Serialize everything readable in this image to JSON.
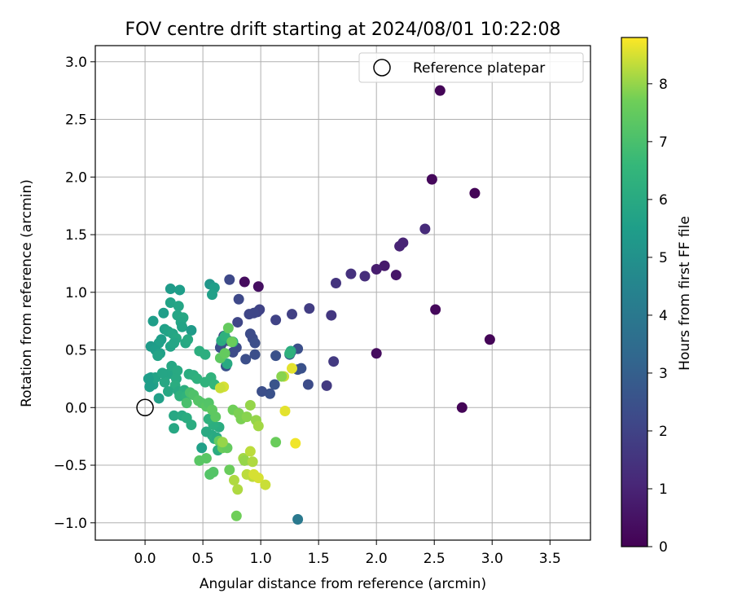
{
  "chart_data": {
    "type": "scatter",
    "title": "FOV centre drift starting at 2024/08/01 10:22:08",
    "xlabel": "Angular distance from reference (arcmin)",
    "ylabel": "Rotation from reference (arcmin)",
    "xlim": [
      -0.43,
      3.85
    ],
    "ylim": [
      -1.15,
      3.14
    ],
    "x_ticks": [
      "0.0",
      "0.5",
      "1.0",
      "1.5",
      "2.0",
      "2.5",
      "3.0",
      "3.5"
    ],
    "x_tick_values": [
      0.0,
      0.5,
      1.0,
      1.5,
      2.0,
      2.5,
      3.0,
      3.5
    ],
    "y_ticks": [
      "−1.0",
      "−0.5",
      "0.0",
      "0.5",
      "1.0",
      "1.5",
      "2.0",
      "2.5",
      "3.0"
    ],
    "y_tick_values": [
      -1.0,
      -0.5,
      0.0,
      0.5,
      1.0,
      1.5,
      2.0,
      2.5,
      3.0
    ],
    "grid": true,
    "legend": {
      "placement": "top-right",
      "entries": [
        {
          "label": "Reference platepar",
          "marker": "open-circle"
        }
      ]
    },
    "reference_point": {
      "x": 0.0,
      "y": 0.0
    },
    "colorbar": {
      "label": "Hours from first FF file",
      "colormap": "viridis",
      "range": [
        0,
        8.8
      ],
      "ticks": [
        "0",
        "1",
        "2",
        "3",
        "4",
        "5",
        "6",
        "7",
        "8"
      ],
      "tick_values": [
        0,
        1,
        2,
        3,
        4,
        5,
        6,
        7,
        8
      ]
    },
    "points": [
      [
        2.55,
        2.75,
        0.1
      ],
      [
        2.48,
        1.98,
        0.2
      ],
      [
        2.85,
        1.86,
        0.1
      ],
      [
        2.51,
        0.85,
        0.2
      ],
      [
        2.98,
        0.59,
        0.1
      ],
      [
        2.74,
        0.0,
        0.1
      ],
      [
        2.0,
        0.47,
        0.3
      ],
      [
        0.86,
        1.09,
        0.3
      ],
      [
        0.98,
        1.05,
        0.4
      ],
      [
        2.17,
        1.15,
        0.6
      ],
      [
        2.07,
        1.23,
        0.7
      ],
      [
        2.0,
        1.2,
        0.8
      ],
      [
        2.23,
        1.43,
        1.0
      ],
      [
        2.2,
        1.4,
        1.0
      ],
      [
        2.42,
        1.55,
        1.2
      ],
      [
        1.9,
        1.14,
        1.3
      ],
      [
        1.78,
        1.16,
        1.4
      ],
      [
        1.65,
        1.08,
        1.5
      ],
      [
        1.61,
        0.8,
        1.6
      ],
      [
        1.63,
        0.4,
        1.7
      ],
      [
        1.57,
        0.19,
        1.7
      ],
      [
        1.42,
        0.86,
        1.8
      ],
      [
        1.27,
        0.81,
        1.9
      ],
      [
        1.13,
        0.76,
        2.0
      ],
      [
        0.99,
        0.85,
        2.0
      ],
      [
        0.97,
        0.83,
        2.0
      ],
      [
        0.94,
        0.82,
        2.1
      ],
      [
        0.9,
        0.81,
        2.1
      ],
      [
        0.8,
        0.74,
        2.1
      ],
      [
        0.81,
        0.94,
        2.2
      ],
      [
        0.73,
        1.11,
        2.2
      ],
      [
        0.91,
        0.64,
        2.3
      ],
      [
        0.93,
        0.6,
        2.3
      ],
      [
        0.95,
        0.56,
        2.4
      ],
      [
        0.76,
        0.48,
        2.3
      ],
      [
        0.87,
        0.42,
        2.4
      ],
      [
        0.95,
        0.46,
        2.4
      ],
      [
        0.79,
        0.52,
        2.3
      ],
      [
        0.68,
        0.62,
        2.1
      ],
      [
        0.66,
        0.55,
        2.2
      ],
      [
        0.72,
        0.58,
        2.3
      ],
      [
        0.65,
        0.52,
        2.4
      ],
      [
        0.7,
        0.36,
        2.5
      ],
      [
        1.13,
        0.45,
        2.5
      ],
      [
        1.26,
        0.48,
        2.5
      ],
      [
        1.32,
        0.51,
        2.4
      ],
      [
        1.32,
        0.33,
        2.5
      ],
      [
        1.35,
        0.34,
        2.5
      ],
      [
        1.41,
        0.2,
        2.3
      ],
      [
        1.12,
        0.2,
        2.6
      ],
      [
        1.08,
        0.12,
        2.5
      ],
      [
        1.01,
        0.14,
        2.4
      ],
      [
        1.25,
        0.46,
        2.8
      ],
      [
        1.32,
        -0.97,
        4.0
      ],
      [
        0.56,
        1.07,
        5.2
      ],
      [
        0.6,
        1.04,
        5.5
      ],
      [
        0.22,
        1.03,
        5.4
      ],
      [
        0.3,
        1.02,
        5.5
      ],
      [
        0.58,
        0.98,
        5.6
      ],
      [
        0.16,
        0.82,
        5.5
      ],
      [
        0.07,
        0.75,
        5.5
      ],
      [
        0.28,
        0.8,
        5.8
      ],
      [
        0.33,
        0.78,
        5.9
      ],
      [
        0.22,
        0.91,
        5.7
      ],
      [
        0.29,
        0.88,
        5.8
      ],
      [
        0.31,
        0.74,
        5.8
      ],
      [
        0.32,
        0.7,
        5.7
      ],
      [
        0.4,
        0.67,
        5.4
      ],
      [
        0.17,
        0.68,
        5.6
      ],
      [
        0.2,
        0.66,
        5.7
      ],
      [
        0.24,
        0.64,
        5.8
      ],
      [
        0.27,
        0.6,
        5.9
      ],
      [
        0.14,
        0.59,
        5.5
      ],
      [
        0.12,
        0.56,
        5.6
      ],
      [
        0.05,
        0.53,
        5.4
      ],
      [
        0.09,
        0.5,
        5.5
      ],
      [
        0.13,
        0.47,
        5.6
      ],
      [
        0.11,
        0.45,
        5.7
      ],
      [
        0.22,
        0.53,
        5.7
      ],
      [
        0.25,
        0.56,
        5.8
      ],
      [
        0.35,
        0.56,
        5.9
      ],
      [
        0.37,
        0.59,
        6.0
      ],
      [
        0.2,
        0.29,
        5.8
      ],
      [
        0.17,
        0.22,
        5.9
      ],
      [
        0.05,
        0.26,
        5.5
      ],
      [
        0.07,
        0.2,
        5.6
      ],
      [
        0.09,
        0.26,
        5.7
      ],
      [
        0.03,
        0.25,
        5.5
      ],
      [
        0.15,
        0.3,
        5.8
      ],
      [
        0.23,
        0.36,
        5.9
      ],
      [
        0.28,
        0.32,
        6.0
      ],
      [
        0.27,
        0.25,
        6.0
      ],
      [
        0.26,
        0.19,
        6.1
      ],
      [
        0.2,
        0.14,
        5.9
      ],
      [
        0.29,
        0.14,
        6.0
      ],
      [
        0.38,
        0.29,
        6.1
      ],
      [
        0.42,
        0.28,
        6.2
      ],
      [
        0.45,
        0.25,
        6.3
      ],
      [
        0.52,
        0.22,
        6.4
      ],
      [
        0.57,
        0.26,
        6.4
      ],
      [
        0.6,
        0.2,
        6.5
      ],
      [
        0.47,
        0.49,
        6.2
      ],
      [
        0.52,
        0.46,
        6.2
      ],
      [
        0.34,
        0.15,
        6.2
      ],
      [
        0.3,
        0.1,
        6.3
      ],
      [
        0.36,
        0.1,
        6.4
      ],
      [
        0.12,
        0.08,
        5.6
      ],
      [
        0.04,
        0.18,
        5.5
      ],
      [
        0.25,
        -0.07,
        5.9
      ],
      [
        0.25,
        -0.18,
        5.9
      ],
      [
        0.32,
        -0.07,
        6.0
      ],
      [
        0.36,
        -0.09,
        6.1
      ],
      [
        0.4,
        -0.15,
        6.1
      ],
      [
        0.49,
        -0.35,
        5.6
      ],
      [
        0.53,
        -0.21,
        6.0
      ],
      [
        0.58,
        -0.24,
        6.0
      ],
      [
        0.6,
        -0.27,
        6.1
      ],
      [
        0.62,
        -0.26,
        6.0
      ],
      [
        0.63,
        -0.37,
        6.1
      ],
      [
        0.64,
        -0.17,
        6.1
      ],
      [
        0.59,
        -0.15,
        6.2
      ],
      [
        0.55,
        -0.1,
        6.3
      ],
      [
        0.71,
        0.38,
        6.0
      ],
      [
        0.66,
        0.58,
        6.1
      ],
      [
        0.76,
        0.57,
        6.3
      ],
      [
        0.69,
        0.62,
        6.3
      ],
      [
        1.26,
        0.49,
        6.1
      ],
      [
        1.25,
        0.47,
        6.3
      ],
      [
        0.36,
        0.04,
        7.0
      ],
      [
        0.39,
        0.13,
        7.0
      ],
      [
        0.42,
        0.11,
        7.1
      ],
      [
        0.46,
        0.06,
        7.2
      ],
      [
        0.49,
        0.04,
        7.2
      ],
      [
        0.53,
        0.01,
        7.3
      ],
      [
        0.55,
        0.04,
        7.2
      ],
      [
        0.58,
        -0.02,
        7.4
      ],
      [
        0.61,
        -0.08,
        7.4
      ],
      [
        0.47,
        -0.46,
        7.3
      ],
      [
        0.53,
        -0.44,
        7.3
      ],
      [
        0.56,
        -0.58,
        7.2
      ],
      [
        0.59,
        -0.56,
        7.2
      ],
      [
        0.64,
        -0.29,
        7.5
      ],
      [
        0.67,
        -0.35,
        7.6
      ],
      [
        0.71,
        -0.35,
        7.5
      ],
      [
        0.73,
        -0.54,
        7.6
      ],
      [
        0.72,
        0.69,
        7.5
      ],
      [
        0.75,
        0.57,
        7.6
      ],
      [
        0.65,
        0.43,
        7.4
      ],
      [
        0.69,
        0.47,
        7.5
      ],
      [
        0.76,
        -0.02,
        7.7
      ],
      [
        0.81,
        -0.05,
        7.8
      ],
      [
        0.83,
        -0.1,
        7.8
      ],
      [
        0.88,
        -0.08,
        7.9
      ],
      [
        0.91,
        0.02,
        8.0
      ],
      [
        0.96,
        -0.11,
        8.0
      ],
      [
        0.98,
        -0.16,
        8.1
      ],
      [
        0.79,
        -0.94,
        7.7
      ],
      [
        0.8,
        -0.71,
        8.2
      ],
      [
        0.77,
        -0.63,
        8.2
      ],
      [
        0.85,
        -0.44,
        8.1
      ],
      [
        0.86,
        -0.46,
        8.0
      ],
      [
        0.88,
        -0.58,
        8.3
      ],
      [
        0.93,
        -0.6,
        8.3
      ],
      [
        0.94,
        -0.58,
        8.5
      ],
      [
        0.98,
        -0.61,
        8.5
      ],
      [
        1.04,
        -0.67,
        8.4
      ],
      [
        0.91,
        -0.38,
        8.3
      ],
      [
        0.93,
        -0.47,
        8.2
      ],
      [
        0.67,
        -0.3,
        8.0
      ],
      [
        0.68,
        0.18,
        8.5
      ],
      [
        0.65,
        0.17,
        8.4
      ],
      [
        1.13,
        -0.3,
        7.6
      ],
      [
        1.21,
        -0.03,
        8.6
      ],
      [
        1.3,
        -0.31,
        8.7
      ],
      [
        1.2,
        0.27,
        8.4
      ],
      [
        1.18,
        0.27,
        7.9
      ],
      [
        1.27,
        0.34,
        8.6
      ]
    ]
  }
}
